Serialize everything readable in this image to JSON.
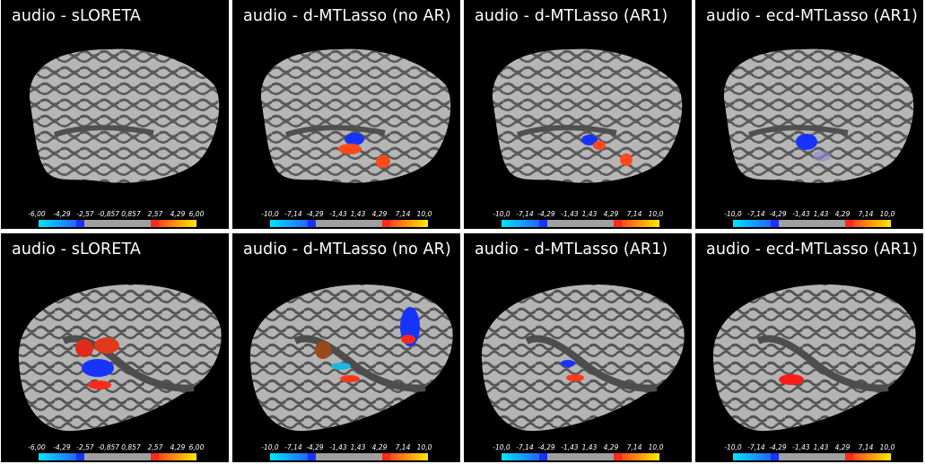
{
  "panels": [
    {
      "title": "audio - sLORETA",
      "view": "lateral",
      "ticks": [
        "-6,00",
        "-4,29",
        "-2,57",
        "-0,857",
        "0,857",
        "2,57",
        "4,29",
        "6,00"
      ],
      "activations": []
    },
    {
      "title": "audio - d-MTLasso (no AR)",
      "view": "lateral",
      "ticks": [
        "-10,0",
        "-7,14",
        "-4,29",
        "-1,43",
        "1,43",
        "4,29",
        "7,14",
        "10,0"
      ],
      "activations": [
        "blue",
        "red",
        "red"
      ]
    },
    {
      "title": "audio - d-MTLasso (AR1)",
      "view": "lateral",
      "ticks": [
        "-10,0",
        "-7,14",
        "-4,29",
        "-1,43",
        "1,43",
        "4,29",
        "7,14",
        "10,0"
      ],
      "activations": [
        "blue",
        "red",
        "red"
      ]
    },
    {
      "title": "audio - ecd-MTLasso (AR1)",
      "view": "lateral",
      "ticks": [
        "-10,0",
        "-7,14",
        "-4,29",
        "-1,43",
        "1,43",
        "4,29",
        "7,14",
        "10,0"
      ],
      "activations": [
        "blue",
        "faint-blue"
      ]
    },
    {
      "title": "audio - sLORETA",
      "view": "right",
      "ticks": [
        "-6,00",
        "-4,29",
        "-2,57",
        "-0,857",
        "0,857",
        "2,57",
        "4,29",
        "6,00"
      ],
      "activations": [
        "red",
        "red",
        "blue",
        "red"
      ]
    },
    {
      "title": "audio - d-MTLasso (no AR)",
      "view": "right",
      "ticks": [
        "-10,0",
        "-7,14",
        "-4,29",
        "-1,43",
        "1,43",
        "4,29",
        "7,14",
        "10,0"
      ],
      "activations": [
        "brown",
        "cyan",
        "red",
        "blue",
        "red"
      ]
    },
    {
      "title": "audio - d-MTLasso (AR1)",
      "view": "right",
      "ticks": [
        "-10,0",
        "-7,14",
        "-4,29",
        "-1,43",
        "1,43",
        "4,29",
        "7,14",
        "10,0"
      ],
      "activations": [
        "blue",
        "red"
      ]
    },
    {
      "title": "audio - ecd-MTLasso (AR1)",
      "view": "right",
      "ticks": [
        "-10,0",
        "-7,14",
        "-4,29",
        "-1,43",
        "1,43",
        "4,29",
        "7,14",
        "10,0"
      ],
      "activations": [
        "red"
      ]
    }
  ],
  "colors": {
    "background": "#000000",
    "cortex_light": "#b4b4b4",
    "cortex_dark": "#555555",
    "negative": "#1733ff",
    "positive": "#ff3a1a"
  }
}
